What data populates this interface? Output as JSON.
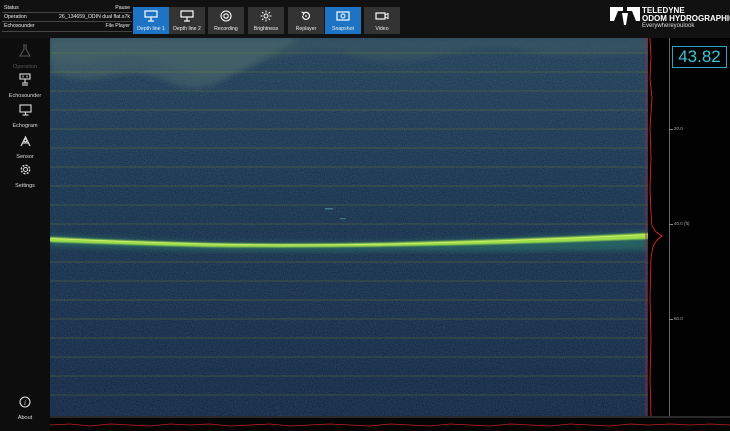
{
  "status_panel": {
    "rows": [
      {
        "label": "Status",
        "value": "Pause"
      },
      {
        "label": "Operation",
        "value": "26_134659_ODIN dual flat.s7k"
      },
      {
        "label": "Echosounder",
        "value": "File Player"
      }
    ]
  },
  "toolbar": {
    "buttons": [
      {
        "label": "Depth line 1",
        "icon": "depth-line-icon",
        "active": true
      },
      {
        "label": "Depth line 2",
        "icon": "depth-line-icon",
        "active": false
      },
      {
        "label": "Recording",
        "icon": "record-icon",
        "active": false
      },
      {
        "label": "Brightness",
        "icon": "brightness-icon",
        "active": false
      },
      {
        "label": "Replayer",
        "icon": "replay-icon",
        "active": false
      },
      {
        "label": "Snapshot",
        "icon": "snapshot-icon",
        "active": true
      },
      {
        "label": "Video",
        "icon": "video-icon",
        "active": false
      }
    ]
  },
  "logo": {
    "line1": "TELEDYNE",
    "line2": "ODOM HYDROGRAPHIC",
    "tagline": "Everywhereyoulook"
  },
  "sidebar": {
    "items": [
      {
        "label": "Operation",
        "icon": "flask-icon",
        "disabled": true
      },
      {
        "label": "Echosounder",
        "icon": "transducer-icon",
        "disabled": false
      },
      {
        "label": "Echogram",
        "icon": "monitor-icon",
        "disabled": false
      },
      {
        "label": "Sensor",
        "icon": "sensor-icon",
        "disabled": false
      },
      {
        "label": "Settings",
        "icon": "gear-icon",
        "disabled": false
      }
    ],
    "about": {
      "label": "About",
      "icon": "info-icon"
    }
  },
  "depth_readout": {
    "value": "43.82"
  },
  "depth_scale": {
    "labels": [
      "20.0",
      "40.0 (ft)",
      "60.0"
    ]
  },
  "colors": {
    "accent": "#1e74c4",
    "readout": "#34c6d8",
    "bottom_echo": "#9de04a",
    "trace": "#e02020"
  }
}
